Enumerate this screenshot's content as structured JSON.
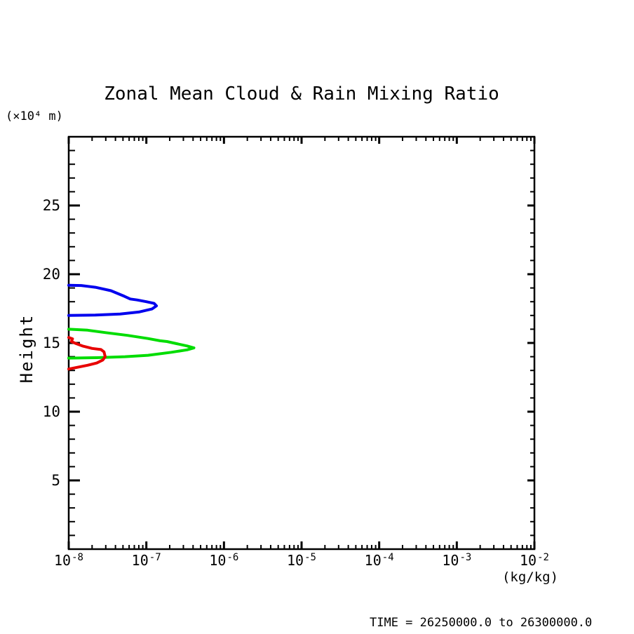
{
  "chart_data": {
    "type": "line",
    "subtype": "contour-profile",
    "title": "Zonal Mean Cloud & Rain Mixing Ratio",
    "annotation": "TIME = 26250000.0 to 26300000.0",
    "x_axis": {
      "label": "(kg/kg)",
      "scale": "log",
      "range": [
        1e-08,
        0.01
      ],
      "ticks": [
        {
          "base": "10",
          "exp": "-8"
        },
        {
          "base": "10",
          "exp": "-7"
        },
        {
          "base": "10",
          "exp": "-6"
        },
        {
          "base": "10",
          "exp": "-5"
        },
        {
          "base": "10",
          "exp": "-4"
        },
        {
          "base": "10",
          "exp": "-3"
        },
        {
          "base": "10",
          "exp": "-2"
        }
      ],
      "minor_ticks_per_decade": [
        2,
        3,
        4,
        5,
        6,
        7,
        8,
        9
      ]
    },
    "y_axis": {
      "label": "Height",
      "units": "(×10⁴ m)",
      "range": [
        0,
        30
      ],
      "major_ticks": [
        5,
        10,
        15,
        20,
        25
      ],
      "minor_tick_step": 1
    },
    "grid": false,
    "legend": "none",
    "series": [
      {
        "name": "contour-blue",
        "color": "#0000ee",
        "points": [
          [
            1e-08,
            19.2
          ],
          [
            1.45e-08,
            19.18
          ],
          [
            2.2e-08,
            19.05
          ],
          [
            3.5e-08,
            18.8
          ],
          [
            5.2e-08,
            18.4
          ],
          [
            6.2e-08,
            18.2
          ],
          [
            7.6e-08,
            18.13
          ],
          [
            1e-07,
            18.0
          ],
          [
            1.26e-07,
            17.88
          ],
          [
            1.35e-07,
            17.7
          ],
          [
            1.18e-07,
            17.47
          ],
          [
            8e-08,
            17.25
          ],
          [
            4.6e-08,
            17.1
          ],
          [
            2.2e-08,
            17.03
          ],
          [
            1e-08,
            17.0
          ]
        ]
      },
      {
        "name": "contour-green",
        "color": "#00dd00",
        "points": [
          [
            1e-08,
            16.0
          ],
          [
            1.75e-08,
            15.93
          ],
          [
            3e-08,
            15.75
          ],
          [
            5.7e-08,
            15.55
          ],
          [
            1.05e-07,
            15.32
          ],
          [
            1.5e-07,
            15.16
          ],
          [
            1.85e-07,
            15.1
          ],
          [
            2.45e-07,
            14.95
          ],
          [
            3.35e-07,
            14.78
          ],
          [
            4.1e-07,
            14.64
          ],
          [
            3.35e-07,
            14.5
          ],
          [
            2.1e-07,
            14.32
          ],
          [
            1.05e-07,
            14.1
          ],
          [
            5.3e-08,
            14.0
          ],
          [
            2.3e-08,
            13.93
          ],
          [
            1e-08,
            13.9
          ]
        ]
      },
      {
        "name": "contour-red",
        "color": "#e80000",
        "points": [
          [
            1e-08,
            15.4
          ],
          [
            1.12e-08,
            15.3
          ],
          [
            1.08e-08,
            15.1
          ],
          [
            1.25e-08,
            14.95
          ],
          [
            1.5e-08,
            14.78
          ],
          [
            2e-08,
            14.6
          ],
          [
            2.6e-08,
            14.52
          ],
          [
            2.85e-08,
            14.35
          ],
          [
            2.95e-08,
            14.0
          ],
          [
            2.75e-08,
            13.76
          ],
          [
            2.3e-08,
            13.54
          ],
          [
            1.75e-08,
            13.38
          ],
          [
            1.35e-08,
            13.25
          ],
          [
            1e-08,
            13.1
          ]
        ]
      }
    ]
  }
}
